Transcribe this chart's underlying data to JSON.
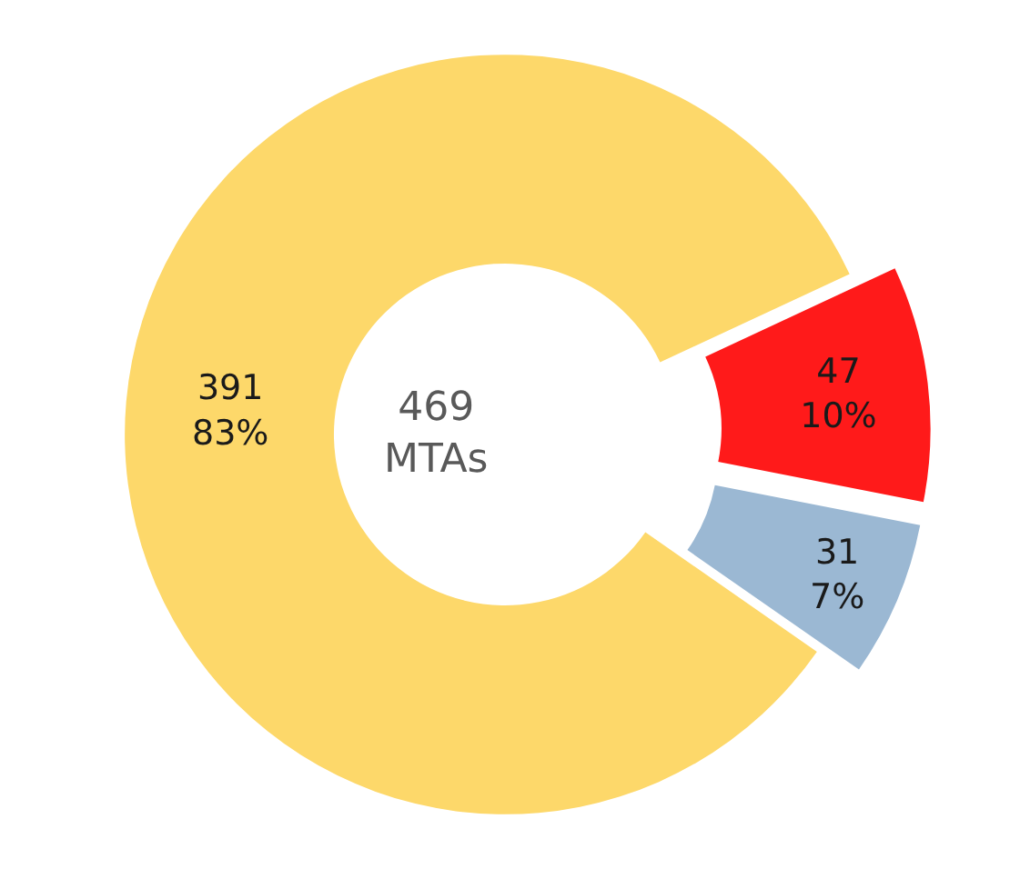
{
  "chart_data": {
    "type": "donut",
    "categories": [
      null,
      null,
      null
    ],
    "values": [
      47,
      31,
      391
    ],
    "colors": [
      "#ff1a1a",
      "#9bb8d3",
      "#fdd86a"
    ],
    "value_labels": [
      "47\n10%",
      "31\n7%",
      "391\n83%"
    ],
    "annotations": [
      "469\nMTAs"
    ],
    "legend": false
  }
}
